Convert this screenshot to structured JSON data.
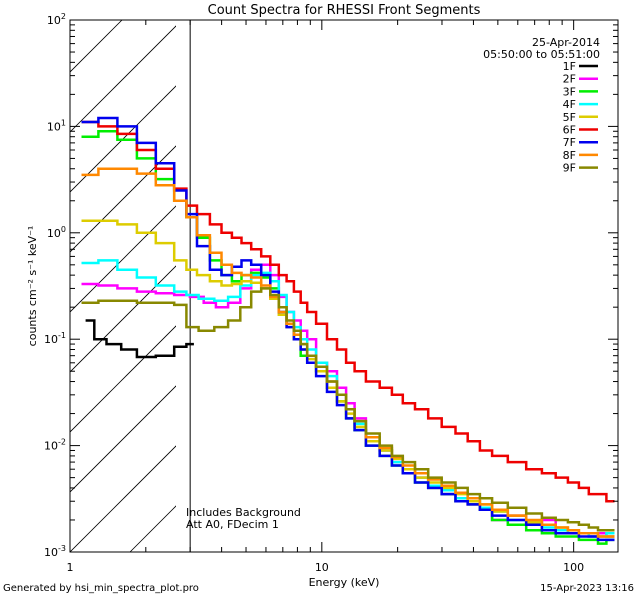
{
  "chart_data": {
    "type": "line",
    "title": "Count Spectra for RHESSI Front Segments",
    "xlabel": "Energy (keV)",
    "ylabel": "counts cm⁻² s⁻¹ keV⁻¹",
    "xscale": "log",
    "yscale": "log",
    "xlim": [
      1,
      150
    ],
    "ylim": [
      0.001,
      100
    ],
    "x_ticks": [
      {
        "value": 1,
        "label": "1"
      },
      {
        "value": 10,
        "label": "10"
      },
      {
        "value": 100,
        "label": "100"
      }
    ],
    "y_ticks": [
      {
        "value": 100,
        "base": "10",
        "exp": "2"
      },
      {
        "value": 10,
        "base": "10",
        "exp": "1"
      },
      {
        "value": 1,
        "base": "10",
        "exp": "0"
      },
      {
        "value": 0.1,
        "base": "10",
        "exp": "-1"
      },
      {
        "value": 0.01,
        "base": "10",
        "exp": "-2"
      },
      {
        "value": 0.001,
        "base": "10",
        "exp": "-3"
      }
    ],
    "shaded_region": {
      "from": 1,
      "to": 3,
      "style": "hatched"
    },
    "date": "25-Apr-2014",
    "time_range": "05:50:00 to 05:51:00",
    "annotation_1": "Includes Background",
    "annotation_2": "Att A0, FDecim 1",
    "legend_position": "top-right",
    "series": [
      {
        "name": "1F",
        "color": "#000000",
        "x": [
          1.2,
          1.3,
          1.5,
          1.7,
          2.0,
          2.4,
          2.8,
          3.0
        ],
        "y": [
          0.15,
          0.1,
          0.09,
          0.08,
          0.068,
          0.07,
          0.085,
          0.09
        ]
      },
      {
        "name": "2F",
        "color": "#ff00ff",
        "x": [
          1.2,
          1.4,
          1.7,
          2.0,
          2.4,
          2.8,
          3.2,
          3.6,
          4.0,
          4.5,
          5.0,
          5.5,
          6.0,
          6.5,
          7.0,
          7.5,
          8.0,
          8.5,
          9.0,
          10,
          11,
          12,
          13,
          14,
          16,
          18,
          20,
          22,
          25,
          28,
          32,
          36,
          40,
          45,
          50,
          60,
          70,
          80,
          90,
          100,
          110,
          120,
          130,
          140
        ],
        "y": [
          0.33,
          0.32,
          0.3,
          0.28,
          0.27,
          0.26,
          0.25,
          0.22,
          0.2,
          0.22,
          0.3,
          0.45,
          0.5,
          0.4,
          0.25,
          0.18,
          0.15,
          0.12,
          0.1,
          0.06,
          0.05,
          0.035,
          0.025,
          0.018,
          0.012,
          0.009,
          0.007,
          0.006,
          0.005,
          0.004,
          0.0035,
          0.003,
          0.0028,
          0.0025,
          0.002,
          0.0022,
          0.0018,
          0.002,
          0.0016,
          0.0015,
          0.0015,
          0.0014,
          0.0015,
          0.0014
        ]
      },
      {
        "name": "3F",
        "color": "#00ee00",
        "x": [
          1.2,
          1.4,
          1.7,
          2.0,
          2.4,
          2.8,
          3.0,
          3.4,
          3.8,
          4.2,
          4.6,
          5.0,
          5.5,
          6.0,
          6.5,
          7.0,
          7.5,
          8.0,
          8.5,
          9.0,
          10,
          11,
          12,
          13,
          14,
          16,
          18,
          20,
          22,
          25,
          28,
          32,
          36,
          40,
          45,
          50,
          60,
          70,
          80,
          90,
          100,
          110,
          120,
          130,
          140
        ],
        "y": [
          8.0,
          9.0,
          7.5,
          5.0,
          3.2,
          2.0,
          1.4,
          0.9,
          0.55,
          0.4,
          0.35,
          0.4,
          0.42,
          0.38,
          0.3,
          0.2,
          0.14,
          0.1,
          0.07,
          0.06,
          0.05,
          0.035,
          0.026,
          0.018,
          0.014,
          0.01,
          0.008,
          0.0065,
          0.0055,
          0.0045,
          0.004,
          0.0035,
          0.003,
          0.0028,
          0.0025,
          0.002,
          0.0018,
          0.0016,
          0.0015,
          0.0014,
          0.0014,
          0.0013,
          0.0013,
          0.0012,
          0.0013
        ]
      },
      {
        "name": "4F",
        "color": "#00ffff",
        "x": [
          1.2,
          1.4,
          1.7,
          2.0,
          2.4,
          2.8,
          3.0,
          3.5,
          4.0,
          4.5,
          5.0,
          5.5,
          6.0,
          6.5,
          7.0,
          7.5,
          8.0,
          8.5,
          9.0,
          10,
          11,
          12,
          13,
          14,
          16,
          18,
          20,
          22,
          25,
          28,
          32,
          36,
          40,
          45,
          50,
          60,
          70,
          80,
          90,
          100,
          110,
          120,
          130,
          140
        ],
        "y": [
          0.52,
          0.55,
          0.45,
          0.38,
          0.32,
          0.28,
          0.26,
          0.24,
          0.23,
          0.25,
          0.32,
          0.4,
          0.42,
          0.35,
          0.26,
          0.18,
          0.13,
          0.1,
          0.08,
          0.06,
          0.045,
          0.03,
          0.022,
          0.016,
          0.012,
          0.009,
          0.007,
          0.006,
          0.005,
          0.0042,
          0.0038,
          0.0032,
          0.003,
          0.0026,
          0.0024,
          0.002,
          0.0018,
          0.0017,
          0.0016,
          0.0015,
          0.0015,
          0.0014,
          0.0014,
          0.0015
        ]
      },
      {
        "name": "5F",
        "color": "#ddcc00",
        "x": [
          1.2,
          1.4,
          1.7,
          2.0,
          2.4,
          2.8,
          3.0,
          3.4,
          3.8,
          4.2,
          4.6,
          5.0,
          5.5,
          6.0,
          6.5,
          7.0,
          7.5,
          8.0,
          8.5,
          9.0,
          10,
          11,
          12,
          13,
          14,
          16,
          18,
          20,
          22,
          25,
          28,
          32,
          36,
          40,
          45,
          50,
          60,
          70,
          80,
          90,
          100,
          110,
          120,
          130,
          140
        ],
        "y": [
          1.3,
          1.3,
          1.2,
          1.0,
          0.8,
          0.55,
          0.45,
          0.4,
          0.35,
          0.32,
          0.33,
          0.35,
          0.34,
          0.3,
          0.24,
          0.17,
          0.13,
          0.1,
          0.08,
          0.065,
          0.05,
          0.035,
          0.026,
          0.02,
          0.015,
          0.011,
          0.009,
          0.0075,
          0.006,
          0.005,
          0.0045,
          0.004,
          0.0035,
          0.003,
          0.0028,
          0.0024,
          0.0022,
          0.0019,
          0.0018,
          0.0017,
          0.0016,
          0.0015,
          0.0015,
          0.0014,
          0.0014
        ]
      },
      {
        "name": "6F",
        "color": "#ee0000",
        "x": [
          1.2,
          1.4,
          1.7,
          2.0,
          2.4,
          2.8,
          3.0,
          3.4,
          3.8,
          4.2,
          4.6,
          5.0,
          5.5,
          6.0,
          6.5,
          7.0,
          7.5,
          8.0,
          8.5,
          9.0,
          10,
          11,
          12,
          13,
          14,
          16,
          18,
          20,
          22,
          25,
          28,
          32,
          36,
          40,
          45,
          50,
          60,
          70,
          80,
          90,
          100,
          110,
          120,
          130,
          140
        ],
        "y": [
          11.0,
          10.0,
          8.5,
          6.0,
          4.0,
          2.6,
          1.8,
          1.5,
          1.2,
          1.0,
          0.9,
          0.8,
          0.7,
          0.6,
          0.5,
          0.4,
          0.35,
          0.28,
          0.22,
          0.18,
          0.14,
          0.1,
          0.08,
          0.06,
          0.05,
          0.04,
          0.035,
          0.03,
          0.025,
          0.022,
          0.018,
          0.015,
          0.013,
          0.011,
          0.009,
          0.008,
          0.007,
          0.006,
          0.0055,
          0.005,
          0.0045,
          0.004,
          0.0035,
          0.0035,
          0.003
        ]
      },
      {
        "name": "7F",
        "color": "#0000ee",
        "x": [
          1.2,
          1.4,
          1.7,
          2.0,
          2.4,
          2.8,
          3.0,
          3.4,
          3.8,
          4.2,
          4.6,
          5.0,
          5.5,
          6.0,
          6.5,
          7.0,
          7.5,
          8.0,
          8.5,
          9.0,
          10,
          11,
          12,
          13,
          14,
          16,
          18,
          20,
          22,
          25,
          28,
          32,
          36,
          40,
          45,
          50,
          60,
          70,
          80,
          90,
          100,
          110,
          120,
          130,
          140
        ],
        "y": [
          11.0,
          12.0,
          10.0,
          7.0,
          4.5,
          2.5,
          1.5,
          0.75,
          0.45,
          0.4,
          0.48,
          0.55,
          0.5,
          0.4,
          0.28,
          0.18,
          0.13,
          0.1,
          0.08,
          0.06,
          0.045,
          0.032,
          0.024,
          0.018,
          0.014,
          0.01,
          0.008,
          0.0065,
          0.0055,
          0.0045,
          0.004,
          0.0035,
          0.003,
          0.0028,
          0.0025,
          0.0022,
          0.002,
          0.0018,
          0.0016,
          0.0015,
          0.0015,
          0.0014,
          0.0014,
          0.0013,
          0.0013
        ]
      },
      {
        "name": "8F",
        "color": "#ff8800",
        "x": [
          1.2,
          1.4,
          1.7,
          2.0,
          2.4,
          2.8,
          3.0,
          3.4,
          3.8,
          4.2,
          4.6,
          5.0,
          5.5,
          6.0,
          6.5,
          7.0,
          7.5,
          8.0,
          8.5,
          9.0,
          10,
          11,
          12,
          13,
          14,
          16,
          18,
          20,
          22,
          25,
          28,
          32,
          36,
          40,
          45,
          50,
          60,
          70,
          80,
          90,
          100,
          110,
          120,
          130,
          140
        ],
        "y": [
          3.5,
          4.0,
          4.0,
          3.6,
          2.8,
          2.0,
          1.4,
          0.95,
          0.65,
          0.5,
          0.42,
          0.4,
          0.38,
          0.32,
          0.25,
          0.18,
          0.14,
          0.11,
          0.09,
          0.07,
          0.055,
          0.04,
          0.03,
          0.022,
          0.017,
          0.012,
          0.0095,
          0.0078,
          0.0065,
          0.0055,
          0.0048,
          0.0042,
          0.0036,
          0.0032,
          0.0028,
          0.0025,
          0.0022,
          0.002,
          0.0018,
          0.0017,
          0.0016,
          0.0015,
          0.0015,
          0.0014,
          0.0014
        ]
      },
      {
        "name": "9F",
        "color": "#888800",
        "x": [
          1.2,
          1.4,
          1.7,
          2.0,
          2.4,
          2.8,
          3.0,
          3.5,
          4.0,
          4.5,
          5.0,
          5.5,
          6.0,
          6.5,
          7.0,
          7.5,
          8.0,
          8.5,
          9.0,
          10,
          11,
          12,
          13,
          14,
          16,
          18,
          20,
          22,
          25,
          28,
          32,
          36,
          40,
          45,
          50,
          60,
          70,
          80,
          90,
          100,
          110,
          120,
          130,
          140
        ],
        "y": [
          0.22,
          0.23,
          0.23,
          0.22,
          0.22,
          0.21,
          0.13,
          0.12,
          0.13,
          0.15,
          0.2,
          0.28,
          0.3,
          0.26,
          0.2,
          0.15,
          0.12,
          0.09,
          0.07,
          0.055,
          0.04,
          0.03,
          0.022,
          0.017,
          0.013,
          0.01,
          0.008,
          0.007,
          0.006,
          0.005,
          0.0045,
          0.004,
          0.0035,
          0.0032,
          0.0029,
          0.0026,
          0.0023,
          0.0021,
          0.002,
          0.0019,
          0.0018,
          0.0017,
          0.0016,
          0.0016
        ]
      }
    ]
  },
  "footer": {
    "left": "Generated by hsi_min_spectra_plot.pro",
    "right": "15-Apr-2023 13:16"
  }
}
